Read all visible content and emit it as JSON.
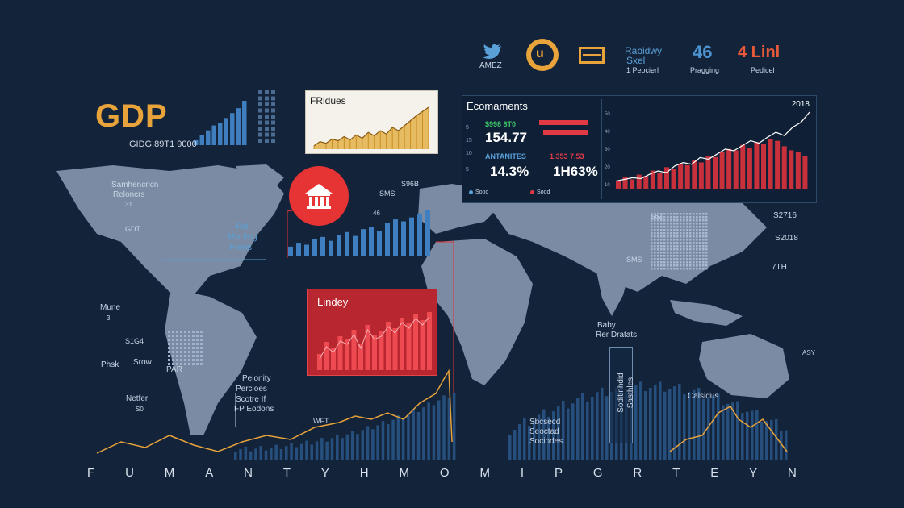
{
  "header": {
    "twitter_label": "AMEZ",
    "item_2_line1": "Rabidwy",
    "item_2_line2": "Sxel",
    "item_2_line3": "1 Peocierl",
    "stat_1_value": "46",
    "stat_1_label": "Pragging",
    "stat_2_value": "4 Linl",
    "stat_2_label": "Pedicel"
  },
  "gdp": {
    "title": "GDP",
    "subtitle": "GIDG.89T1 9000"
  },
  "white_panel": {
    "title": "FRidues"
  },
  "red_panel": {
    "title": "Lindey"
  },
  "dashboard": {
    "title": "Ecomaments",
    "year": "2018",
    "kpi_1_label": "$998 8T0",
    "kpi_1_value": "154.77",
    "kpi_2_label": "ANTANITES",
    "kpi_2_value": "14.3%",
    "kpi_3_value": "1H63%",
    "kpi_3_label": "1.353 7.53",
    "legend_1": "Sood",
    "legend_2": "Sood",
    "colors": {
      "green": "#3ec96b",
      "red": "#e23a45",
      "blue": "#5aa0d8"
    }
  },
  "map_labels": {
    "na_1": "Samhencricn",
    "na_2": "Reloncrs",
    "na_3": "31",
    "na_4": "GDT",
    "callout_1": "Fidl",
    "callout_2": "Marting",
    "callout_3": "Frens",
    "mid_1": "S96B",
    "mid_2": "SMS",
    "mid_3": "46",
    "sa_1": "Mune",
    "sa_2": "3",
    "sa_3": "S1G4",
    "sa_4": "Phsk",
    "sa_5": "Srow",
    "sa_6": "PAR",
    "sa_7": "Netfer",
    "sa_8": "S0",
    "legend_a": "Pelonity",
    "legend_b": "Percloes",
    "legend_c": "Scotre If",
    "legend_d": "FP Eodons",
    "wft": "WFT",
    "asia_1": "S62",
    "asia_2": "SMS",
    "east_1": "S2716",
    "east_2": "S2018",
    "east_3": "7TH",
    "africa_1": "Baby",
    "africa_2": "Rer Dratats",
    "stack_1": "Sbcsecd",
    "stack_2": "Seoctad",
    "stack_3": "Sociodes",
    "vertical_1": "Soditinhdid",
    "vertical_2": "Sasthles",
    "aus_1": "Calsidus",
    "aus_2": "ASY"
  },
  "axis_letters": [
    "F",
    "U",
    "M",
    "A",
    "N",
    "T",
    "Y",
    "H",
    "M",
    "O",
    "M",
    "I",
    "P",
    "G",
    "R",
    "T",
    "E",
    "Y",
    "N"
  ],
  "chart_data": [
    {
      "type": "bar",
      "name": "gdp-small-bars",
      "values": [
        2,
        4,
        6,
        8,
        9,
        11,
        13,
        15,
        18
      ]
    },
    {
      "type": "area",
      "name": "white-panel-area",
      "values": [
        4,
        9,
        7,
        12,
        10,
        15,
        11,
        17,
        13,
        20,
        16,
        22,
        18,
        26,
        22,
        28,
        34,
        40,
        45,
        50
      ]
    },
    {
      "type": "bar",
      "name": "center-blue-bars",
      "values": [
        10,
        14,
        12,
        18,
        20,
        16,
        22,
        25,
        21,
        28,
        30,
        26,
        34,
        38,
        36,
        40,
        44,
        48
      ]
    },
    {
      "type": "bar",
      "name": "red-panel-bars",
      "values": [
        20,
        35,
        28,
        42,
        38,
        50,
        33,
        56,
        44,
        48,
        60,
        52,
        65,
        58,
        70,
        62,
        72
      ]
    },
    {
      "type": "bar",
      "name": "dashboard-red-bars",
      "values": [
        12,
        18,
        15,
        22,
        20,
        28,
        25,
        33,
        30,
        38,
        36,
        44,
        40,
        50,
        48,
        56,
        60,
        58,
        66,
        62,
        70,
        68,
        74,
        72,
        64,
        58,
        55,
        50
      ]
    },
    {
      "type": "line",
      "name": "dashboard-line",
      "values": [
        10,
        12,
        14,
        13,
        18,
        22,
        20,
        28,
        32,
        30,
        38,
        36,
        42,
        48,
        46,
        52,
        58,
        55,
        62,
        68,
        64,
        74,
        80,
        92
      ]
    }
  ]
}
